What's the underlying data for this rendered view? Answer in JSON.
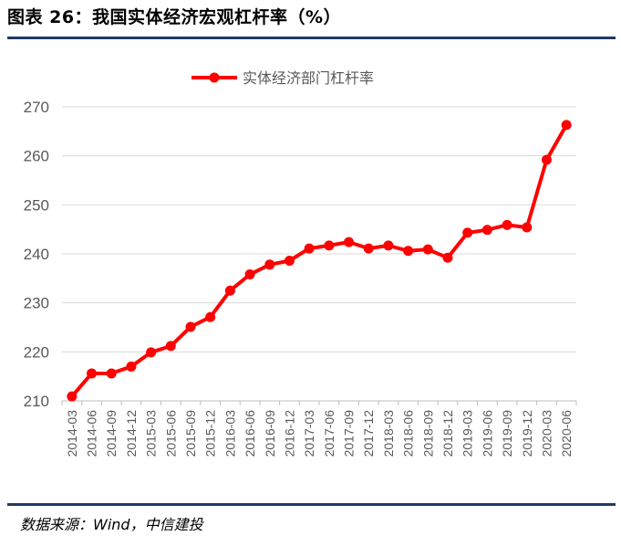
{
  "title": "图表 26：我国实体经济宏观杠杆率（%）",
  "source": "数据来源：Wind，中信建投",
  "colors": {
    "series": "#ff0000",
    "rule": "#1f3b63",
    "grid": "#d9d9d9",
    "axis_text": "#595959"
  },
  "chart_data": {
    "type": "line",
    "title": "",
    "xlabel": "",
    "ylabel": "",
    "ylim": [
      210,
      270
    ],
    "yticks": [
      210,
      220,
      230,
      240,
      250,
      260,
      270
    ],
    "grid": true,
    "legend_position": "top-center",
    "categories": [
      "2014-03",
      "2014-06",
      "2014-09",
      "2014-12",
      "2015-03",
      "2015-06",
      "2015-09",
      "2015-12",
      "2016-03",
      "2016-06",
      "2016-09",
      "2016-12",
      "2017-03",
      "2017-06",
      "2017-09",
      "2017-12",
      "2018-03",
      "2018-06",
      "2018-09",
      "2018-12",
      "2019-03",
      "2019-06",
      "2019-09",
      "2019-12",
      "2020-03",
      "2020-06"
    ],
    "series": [
      {
        "name": "实体经济部门杠杆率",
        "values": [
          210.9,
          215.6,
          215.6,
          217.0,
          219.9,
          221.2,
          225.1,
          227.1,
          232.5,
          235.8,
          237.8,
          238.6,
          241.1,
          241.7,
          242.4,
          241.1,
          241.7,
          240.6,
          240.9,
          239.2,
          244.3,
          244.9,
          245.9,
          245.4,
          259.2,
          266.3
        ]
      }
    ]
  }
}
